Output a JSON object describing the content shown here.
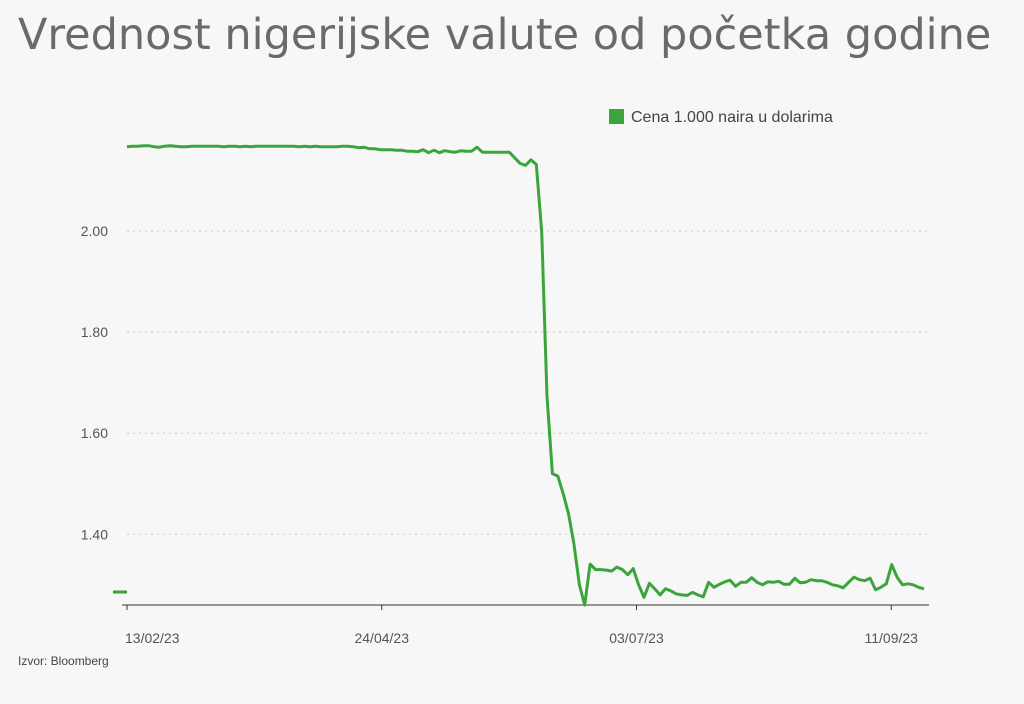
{
  "title": "Vrednost nigerijske valute od početka godine",
  "source": "Izvor: Bloomberg",
  "chart_data": {
    "type": "line",
    "title": "Vrednost nigerijske valute od početka godine",
    "xlabel": "",
    "ylabel": "",
    "x_start": "2023-02-13",
    "x_end": "2023-09-20",
    "x_ticks": [
      "13/02/23",
      "24/04/23",
      "03/07/23",
      "11/09/23"
    ],
    "y_ticks": [
      "1.40",
      "1.60",
      "1.80",
      "2.00"
    ],
    "y_tick_values": [
      1.4,
      1.6,
      1.8,
      2.0
    ],
    "ylim": [
      1.26,
      2.2
    ],
    "grid": "horizontal dotted",
    "legend_position": "top-right",
    "color": "#3aa53a",
    "series": [
      {
        "name": "Cena 1.000 naira u dolarima",
        "values": [
          2.167,
          2.168,
          2.168,
          2.169,
          2.169,
          2.167,
          2.166,
          2.168,
          2.169,
          2.168,
          2.167,
          2.167,
          2.168,
          2.168,
          2.168,
          2.168,
          2.168,
          2.168,
          2.167,
          2.168,
          2.168,
          2.167,
          2.168,
          2.167,
          2.168,
          2.168,
          2.168,
          2.168,
          2.168,
          2.168,
          2.168,
          2.168,
          2.167,
          2.168,
          2.167,
          2.168,
          2.167,
          2.167,
          2.167,
          2.167,
          2.168,
          2.168,
          2.167,
          2.165,
          2.166,
          2.163,
          2.163,
          2.161,
          2.161,
          2.161,
          2.16,
          2.16,
          2.158,
          2.158,
          2.157,
          2.161,
          2.155,
          2.16,
          2.155,
          2.159,
          2.157,
          2.156,
          2.159,
          2.158,
          2.158,
          2.166,
          2.156,
          2.156,
          2.156,
          2.156,
          2.156,
          2.156,
          2.145,
          2.134,
          2.13,
          2.141,
          2.132,
          1.999,
          1.673,
          1.52,
          1.515,
          1.48,
          1.44,
          1.38,
          1.3,
          1.26,
          1.341,
          1.33,
          1.33,
          1.329,
          1.327,
          1.335,
          1.33,
          1.32,
          1.332,
          1.3,
          1.275,
          1.303,
          1.292,
          1.28,
          1.292,
          1.288,
          1.282,
          1.28,
          1.279,
          1.285,
          1.28,
          1.276,
          1.305,
          1.295,
          1.301,
          1.306,
          1.309,
          1.297,
          1.305,
          1.305,
          1.314,
          1.305,
          1.3,
          1.306,
          1.305,
          1.307,
          1.301,
          1.301,
          1.313,
          1.304,
          1.305,
          1.31,
          1.308,
          1.308,
          1.305,
          1.3,
          1.298,
          1.294,
          1.305,
          1.315,
          1.31,
          1.308,
          1.313,
          1.29,
          1.295,
          1.302,
          1.34,
          1.315,
          1.3,
          1.302,
          1.3,
          1.295,
          1.292
        ]
      }
    ]
  }
}
